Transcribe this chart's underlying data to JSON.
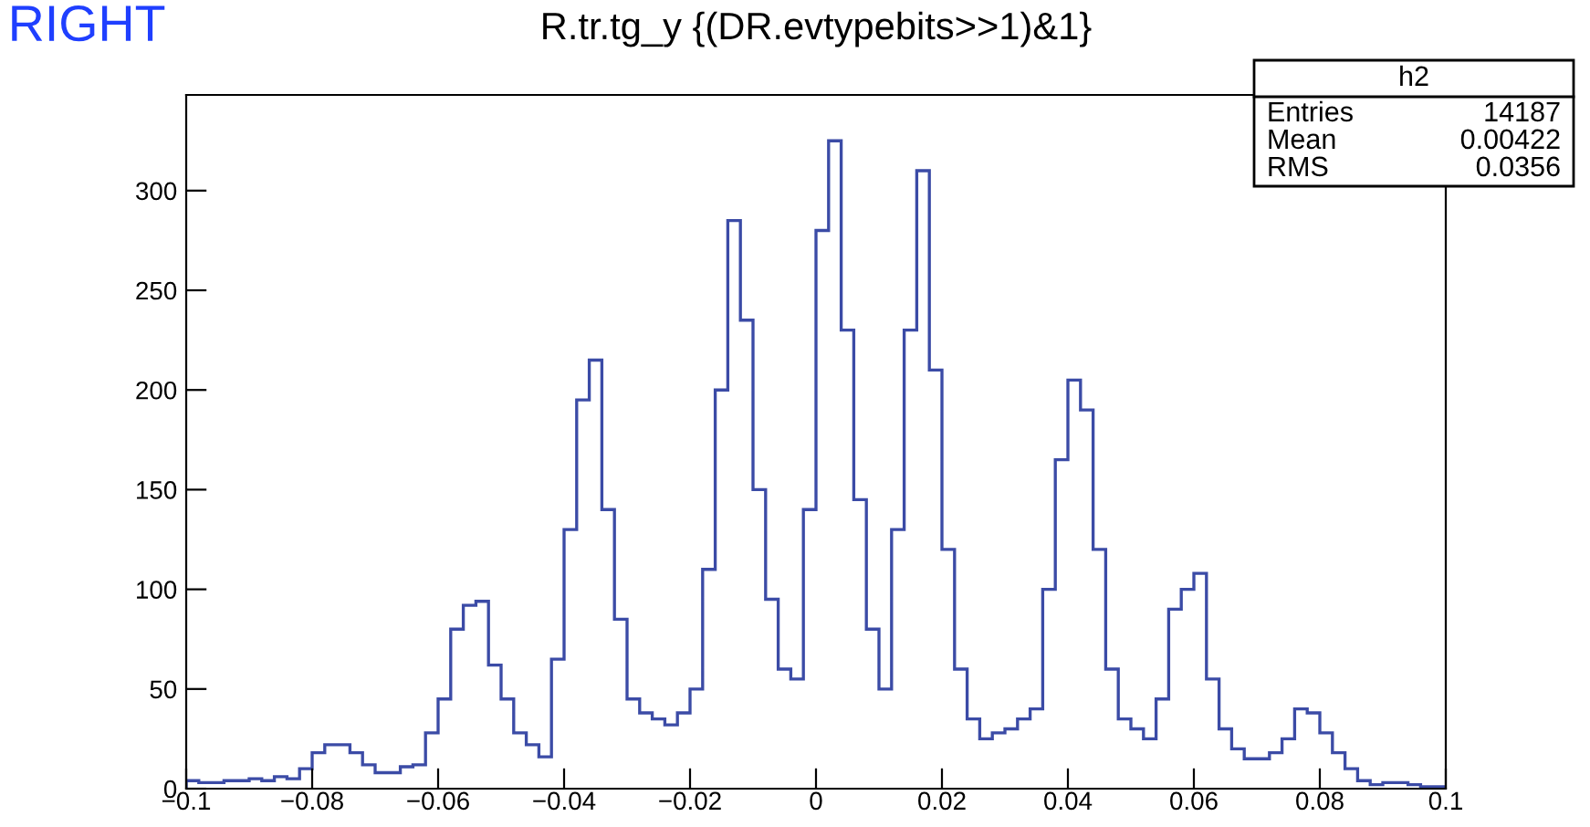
{
  "chart_data": {
    "type": "histogram",
    "title": "R.tr.tg_y {(DR.evtypebits>>1)&1}",
    "annotations": [
      "RIGHT",
      "h2",
      "Entries",
      "14187",
      "Mean",
      "0.00422",
      "RMS",
      "0.0356"
    ],
    "bins": [
      -0.1,
      -0.098,
      -0.096,
      -0.094,
      -0.092,
      -0.09,
      -0.088,
      -0.086,
      -0.084,
      -0.082,
      -0.08,
      -0.078,
      -0.076,
      -0.074,
      -0.072,
      -0.07,
      -0.068,
      -0.066,
      -0.064,
      -0.062,
      -0.06,
      -0.058,
      -0.056,
      -0.054,
      -0.052,
      -0.05,
      -0.048,
      -0.046,
      -0.044,
      -0.042,
      -0.04,
      -0.038,
      -0.036,
      -0.034,
      -0.032,
      -0.03,
      -0.028,
      -0.026,
      -0.024,
      -0.022,
      -0.02,
      -0.018,
      -0.016,
      -0.014,
      -0.012,
      -0.01,
      -0.008,
      -0.006,
      -0.004,
      -0.002,
      0,
      0.002,
      0.004,
      0.006,
      0.008,
      0.01,
      0.012,
      0.014,
      0.016,
      0.018,
      0.02,
      0.022,
      0.024,
      0.026,
      0.028,
      0.03,
      0.032,
      0.034,
      0.036,
      0.038,
      0.04,
      0.042,
      0.044,
      0.046,
      0.048,
      0.05,
      0.052,
      0.054,
      0.056,
      0.058,
      0.06,
      0.062,
      0.064,
      0.066,
      0.068,
      0.07,
      0.072,
      0.074,
      0.076,
      0.078,
      0.08,
      0.082,
      0.084,
      0.086,
      0.088,
      0.09,
      0.092,
      0.094,
      0.096,
      0.098,
      0.1
    ],
    "values": [
      4,
      3,
      3,
      4,
      4,
      5,
      4,
      6,
      5,
      10,
      18,
      22,
      22,
      18,
      12,
      8,
      8,
      11,
      12,
      28,
      45,
      80,
      92,
      94,
      62,
      45,
      28,
      22,
      16,
      65,
      130,
      195,
      215,
      140,
      85,
      45,
      38,
      35,
      32,
      38,
      50,
      110,
      200,
      285,
      235,
      150,
      95,
      60,
      55,
      140,
      280,
      325,
      230,
      145,
      80,
      50,
      130,
      230,
      310,
      210,
      120,
      60,
      35,
      25,
      28,
      30,
      35,
      40,
      100,
      165,
      205,
      190,
      120,
      60,
      35,
      30,
      25,
      45,
      90,
      100,
      108,
      55,
      30,
      20,
      15,
      15,
      18,
      25,
      40,
      38,
      28,
      18,
      10,
      4,
      2,
      3,
      3,
      2,
      1,
      1
    ],
    "color": "#3b4ba6",
    "xlim": [
      -0.1,
      0.1
    ],
    "ylim": [
      0,
      348
    ],
    "xticks": [
      {
        "value": -0.1,
        "label": "−0.1"
      },
      {
        "value": -0.08,
        "label": "−0.08"
      },
      {
        "value": -0.06,
        "label": "−0.06"
      },
      {
        "value": -0.04,
        "label": "−0.04"
      },
      {
        "value": -0.02,
        "label": "−0.02"
      },
      0,
      0.02,
      0.04,
      0.06,
      0.08,
      0.1
    ],
    "yticks": [
      0,
      50,
      100,
      150,
      200,
      250,
      300
    ],
    "grid": false
  }
}
